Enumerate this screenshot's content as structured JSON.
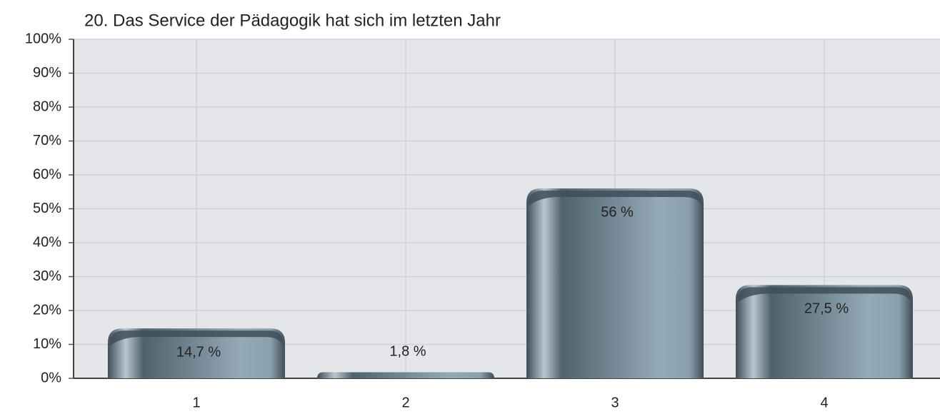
{
  "chart_data": {
    "type": "bar",
    "title": "20. Das Service der Pädagogik hat sich im letzten Jahr",
    "categories": [
      "1",
      "2",
      "3",
      "4"
    ],
    "values": [
      14.7,
      1.8,
      56,
      27.5
    ],
    "value_labels": [
      "14,7 %",
      "1,8 %",
      "56 %",
      "27,5 %"
    ],
    "color": "#6e8593",
    "ylim": [
      0,
      100
    ],
    "yticks": [
      {
        "value": 0,
        "label": "0%"
      },
      {
        "value": 10,
        "label": "10%"
      },
      {
        "value": 20,
        "label": "20%"
      },
      {
        "value": 30,
        "label": "30%"
      },
      {
        "value": 40,
        "label": "40%"
      },
      {
        "value": 50,
        "label": "50%"
      },
      {
        "value": 60,
        "label": "60%"
      },
      {
        "value": 70,
        "label": "70%"
      },
      {
        "value": 80,
        "label": "80%"
      },
      {
        "value": 90,
        "label": "90%"
      },
      {
        "value": 100,
        "label": "100%"
      }
    ],
    "grid": true
  }
}
